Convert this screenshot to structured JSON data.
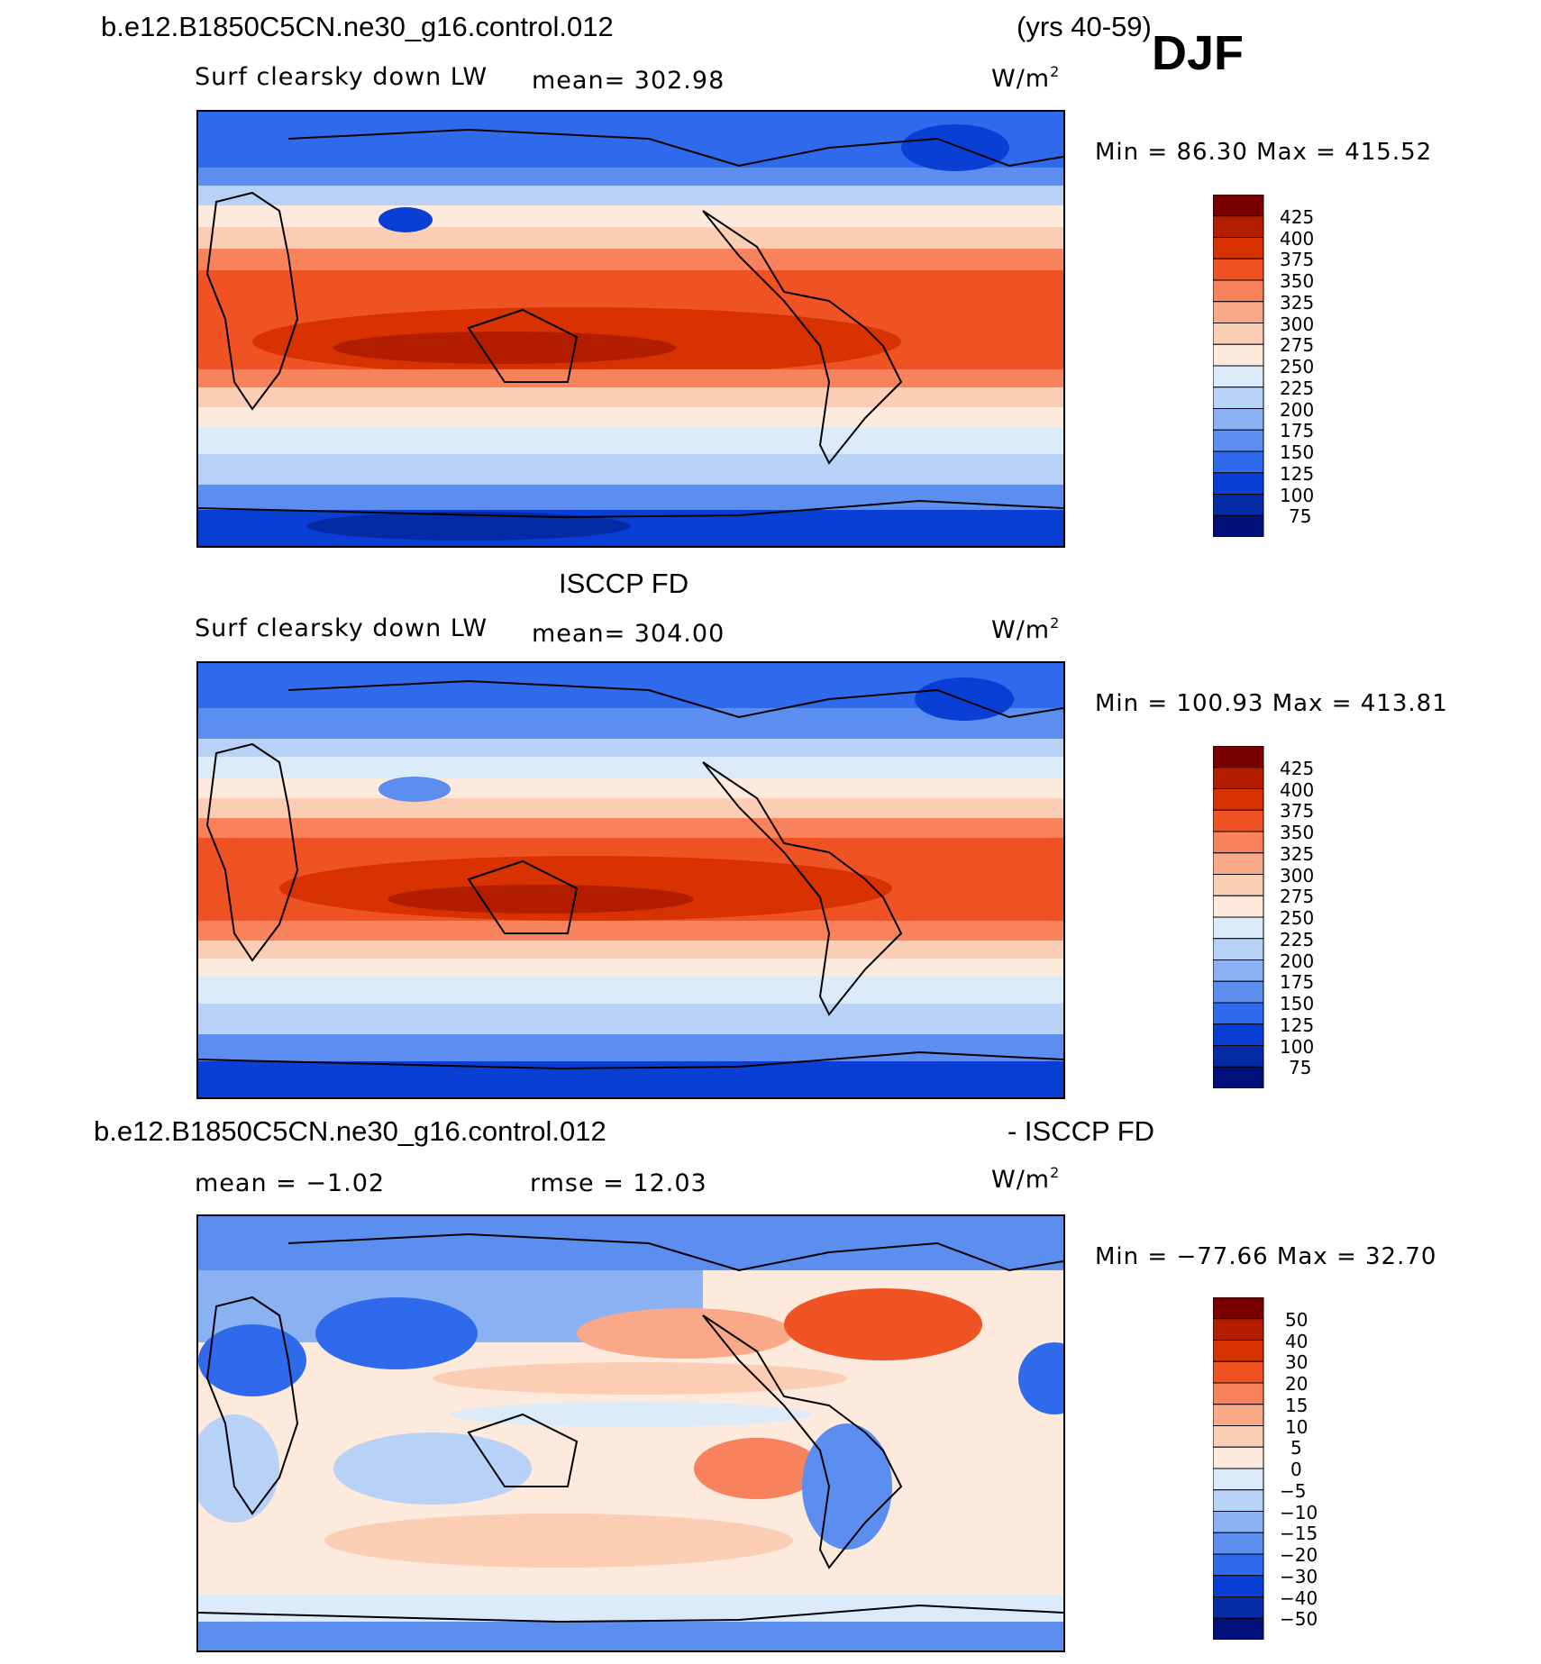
{
  "header": {
    "case_name": "b.e12.B1850C5CN.ne30_g16.control.012",
    "years": "(yrs 40-59)",
    "season": "DJF"
  },
  "panels": [
    {
      "id": "model",
      "variable": "Surf clearsky down LW",
      "mean_label": "mean=  302.98",
      "units": "W/m",
      "units_sup": "2",
      "minmax": "Min =   86.30 Max = 415.52",
      "colorbar_labels": [
        "425",
        "400",
        "375",
        "350",
        "325",
        "300",
        "275",
        "250",
        "225",
        "200",
        "175",
        "150",
        "125",
        "100",
        "75"
      ]
    },
    {
      "id": "obs",
      "title": "ISCCP FD",
      "variable": "Surf clearsky down LW",
      "mean_label": "mean=  304.00",
      "units": "W/m",
      "units_sup": "2",
      "minmax": "Min = 100.93 Max = 413.81",
      "colorbar_labels": [
        "425",
        "400",
        "375",
        "350",
        "325",
        "300",
        "275",
        "250",
        "225",
        "200",
        "175",
        "150",
        "125",
        "100",
        "75"
      ]
    },
    {
      "id": "diff",
      "title_left": "b.e12.B1850C5CN.ne30_g16.control.012",
      "title_right": "- ISCCP FD",
      "mean_label": "mean =   −1.02",
      "rmse_label": "rmse =   12.03",
      "units": "W/m",
      "units_sup": "2",
      "minmax": "Min = −77.66 Max =   32.70",
      "colorbar_labels": [
        "50",
        "40",
        "30",
        "20",
        "15",
        "10",
        "5",
        "0",
        "−5",
        "−10",
        "−15",
        "−20",
        "−30",
        "−40",
        "−50"
      ]
    }
  ],
  "colors": {
    "seq_scale": [
      "#7a0000",
      "#b21d00",
      "#d73200",
      "#ef5323",
      "#f7825c",
      "#f9a888",
      "#fbcdb4",
      "#fdeadd",
      "#dcebfa",
      "#b7d1f7",
      "#8ab1f2",
      "#5c8ef0",
      "#2f6aec",
      "#0a3fd5",
      "#052aa6",
      "#000f7a"
    ],
    "diff_scale": [
      "#7a0000",
      "#b21d00",
      "#d73200",
      "#ef5323",
      "#f7825c",
      "#f9a888",
      "#fbcdb4",
      "#fdeadd",
      "#dcebfa",
      "#b7d1f7",
      "#8ab1f2",
      "#5c8ef0",
      "#2f6aec",
      "#0a3fd5",
      "#052aa6",
      "#000f7a"
    ]
  }
}
